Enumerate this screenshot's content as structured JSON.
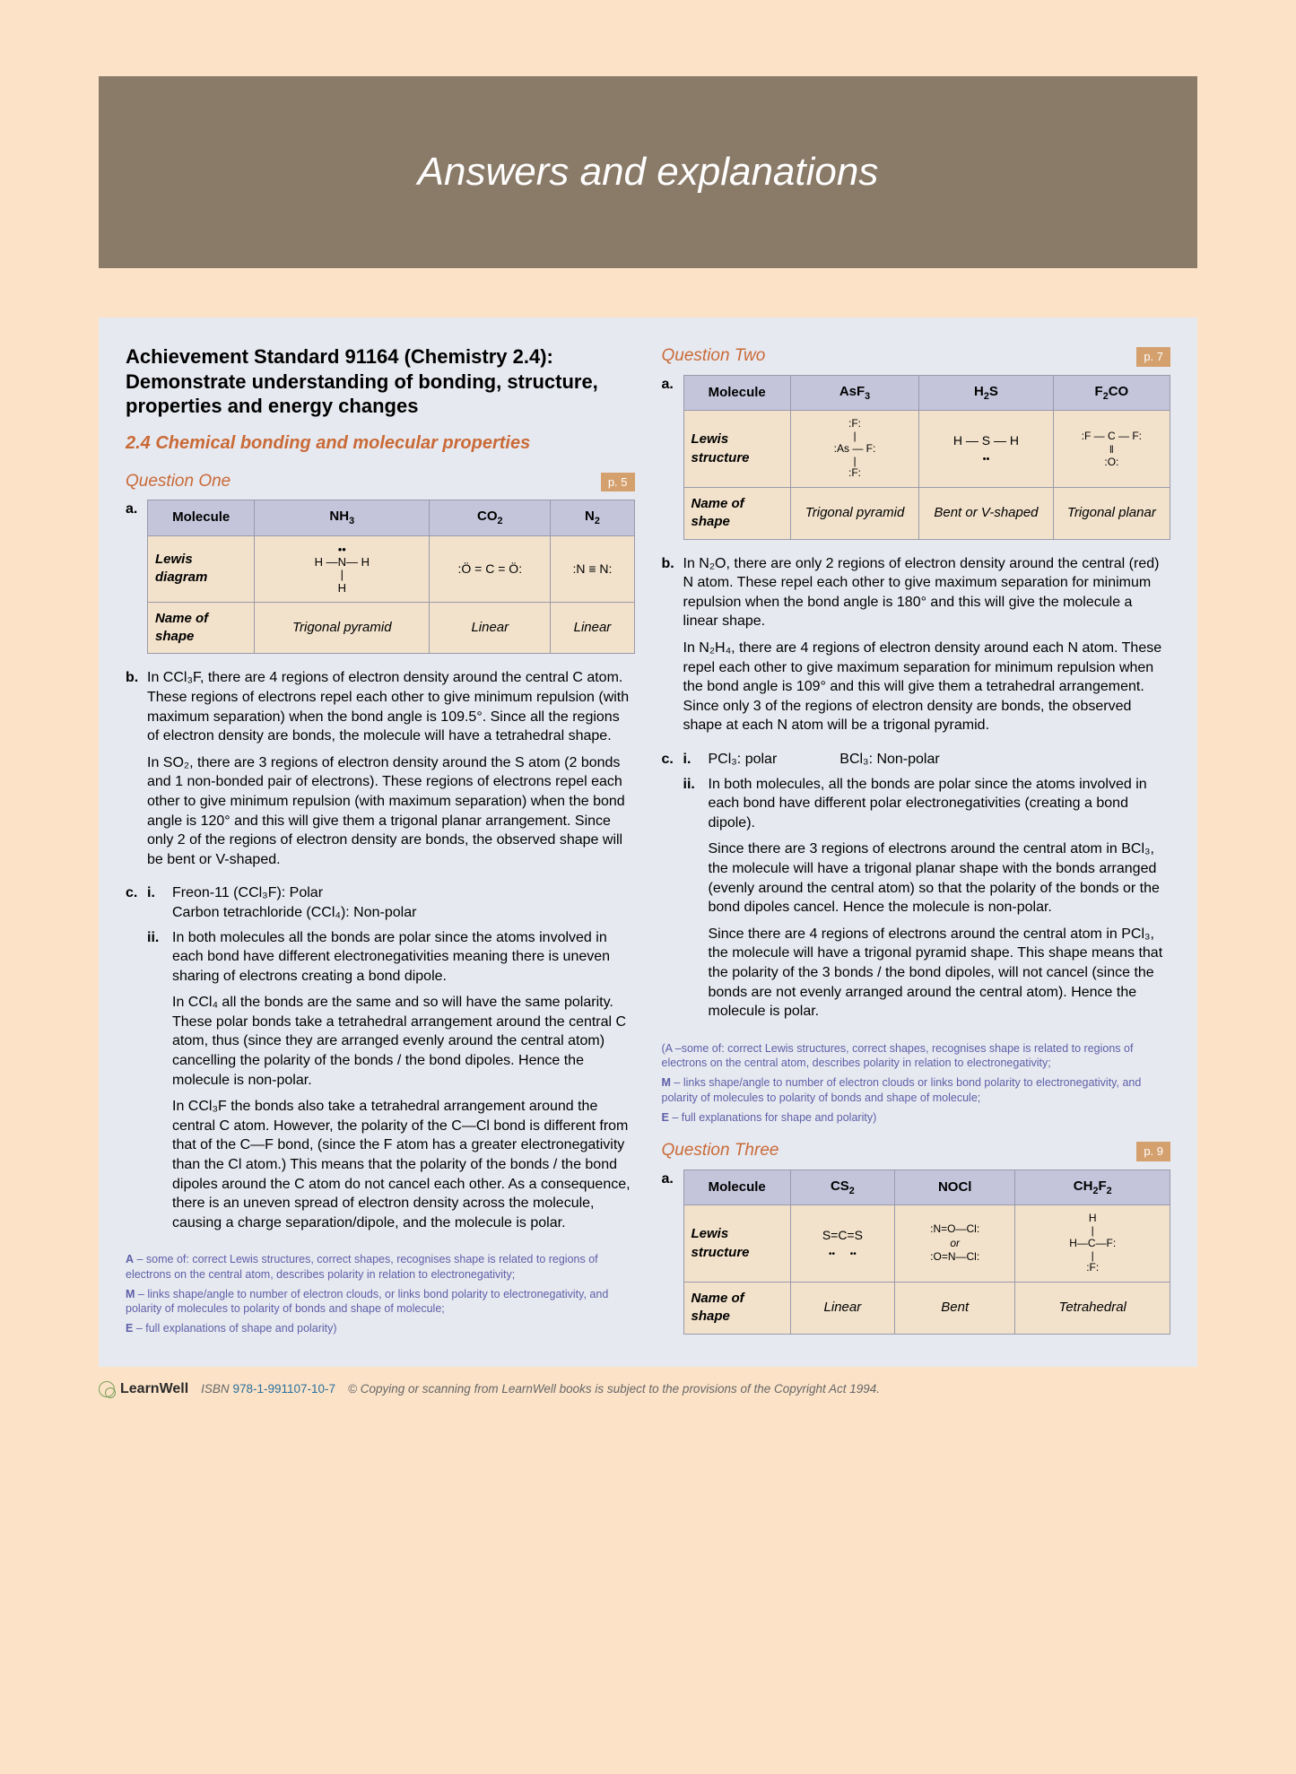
{
  "banner_title": "Answers and explanations",
  "main_heading": "Achievement Standard 91164 (Chemistry 2.4): Demonstrate understanding of bonding, structure, properties and energy changes",
  "section_heading": "2.4 Chemical bonding and molecular properties",
  "colors": {
    "page_bg": "#fce3c8",
    "banner_bg": "#8a7a68",
    "content_bg": "#e7e9f0",
    "accent": "#c96a37",
    "table_header": "#c4c5db",
    "table_cell": "#f2e2cb",
    "note_color": "#5d5fa8",
    "page_ref_bg": "#d4a06e"
  },
  "q1": {
    "title": "Question One",
    "page_ref": "p. 5",
    "table": {
      "headers": [
        "Molecule",
        "NH₃",
        "CO₂",
        "N₂"
      ],
      "rows": [
        {
          "label": "Lewis diagram",
          "cells": [
            "H—N—H (with lone pair on N, H below)",
            "O=C=O (with lone pairs)",
            "N≡N (with lone pairs)"
          ]
        },
        {
          "label": "Name of shape",
          "cells": [
            "Trigonal pyramid",
            "Linear",
            "Linear"
          ]
        }
      ]
    },
    "b1": "In CCl₃F, there are 4 regions of electron density around the central C atom. These regions of electrons repel each other to give minimum repulsion (with maximum separation) when the bond angle is 109.5°. Since all the regions of electron density are bonds, the molecule will have a tetrahedral shape.",
    "b2": "In SO₂, there are 3 regions of electron density around the S atom (2 bonds and 1 non-bonded pair of electrons). These regions of electrons repel each other to give minimum repulsion (with maximum separation) when the bond angle is 120° and this will give them a trigonal planar arrangement. Since only 2 of the regions of electron density are bonds, the observed shape will be bent or V-shaped.",
    "c_i_1": "Freon-11 (CCl₃F): Polar",
    "c_i_2": "Carbon tetrachloride (CCl₄): Non-polar",
    "c_ii_1": "In both molecules all the bonds are polar since the atoms involved in each bond have  different electronegativities meaning there is uneven sharing of electrons creating a bond dipole.",
    "c_ii_2": "In CCl₄ all the bonds are the same and so will have the same polarity. These polar bonds take a tetrahedral arrangement around the central C atom, thus (since they are arranged evenly around the central atom) cancelling the polarity of the bonds / the bond dipoles. Hence the molecule is non-polar.",
    "c_ii_3": "In CCl₃F the bonds also take a tetrahedral arrangement around the central C atom. However, the polarity of the C—Cl bond is different from that of the C—F bond, (since the F atom has a greater electronegativity than the Cl atom.) This means that the polarity of the bonds / the bond dipoles around the C atom do not cancel each other. As a consequence, there is an uneven spread of electron density across the molecule, causing a charge separation/dipole, and the molecule is polar.",
    "note_a": "A – some of: correct Lewis structures, correct shapes, recognises shape is related to regions of electrons on the central atom, describes polarity in relation to electronegativity;",
    "note_m": "M – links shape/angle to number of electron clouds, or links bond polarity to electronegativity, and polarity of molecules to polarity of bonds and shape of molecule;",
    "note_e": "E – full explanations of shape and polarity)"
  },
  "q2": {
    "title": "Question Two",
    "page_ref": "p. 7",
    "table": {
      "headers": [
        "Molecule",
        "AsF₃",
        "H₂S",
        "F₂CO"
      ],
      "rows": [
        {
          "label": "Lewis structure",
          "cells": [
            "As with 3 F and lone pair",
            "H—S—H with lone pairs",
            "F—C(=O)—F with lone pairs"
          ]
        },
        {
          "label": "Name of shape",
          "cells": [
            "Trigonal pyramid",
            "Bent or V-shaped",
            "Trigonal planar"
          ]
        }
      ]
    },
    "b1": "In N₂O, there are only 2 regions of electron density around the central (red) N atom. These repel each other to give maximum separation for minimum repulsion when the bond angle is 180° and this will give the molecule a linear shape.",
    "b2": "In N₂H₄, there are 4 regions of electron density around each N atom. These repel each other to give maximum separation for minimum repulsion when the bond angle is 109° and this will give them a tetrahedral arrangement. Since only 3 of the regions of electron density are bonds, the observed shape at each N atom will be a trigonal pyramid.",
    "c_i_1": "PCl₃: polar",
    "c_i_2": "BCl₃: Non-polar",
    "c_ii_1": "In both molecules, all the bonds are polar since the atoms involved in each bond have different polar electronegativities (creating a bond dipole).",
    "c_ii_2": "Since there are 3 regions of electrons around the central atom in BCl₃, the molecule will have a trigonal planar shape with the bonds arranged (evenly around the central atom) so that the polarity of the bonds or the bond dipoles cancel. Hence the molecule is non-polar.",
    "c_ii_3": "Since there are 4 regions of electrons around the central atom in PCl₃, the molecule will have a trigonal pyramid shape. This shape means that the polarity of the 3 bonds / the bond dipoles, will not cancel (since the bonds are not evenly arranged around the central atom). Hence the molecule is polar.",
    "note_a": "(A –some of: correct Lewis structures, correct shapes, recognises shape is related to regions of electrons on the central atom, describes polarity in relation to electronegativity;",
    "note_m": "M – links shape/angle to number of electron clouds or links bond polarity to electronegativity, and polarity of molecules to polarity of bonds and shape of molecule;",
    "note_e": "E – full explanations for shape and polarity)"
  },
  "q3": {
    "title": "Question Three",
    "page_ref": "p. 9",
    "table": {
      "headers": [
        "Molecule",
        "CS₂",
        "NOCl",
        "CH₂F₂"
      ],
      "rows": [
        {
          "label": "Lewis structure",
          "cells": [
            "S=C=S",
            "N=O—Cl or O=N—Cl",
            "H—C(H)(F)—F"
          ]
        },
        {
          "label": "Name of shape",
          "cells": [
            "Linear",
            "Bent",
            "Tetrahedral"
          ]
        }
      ]
    }
  },
  "footer": {
    "brand": "LearnWell",
    "isbn_label": "ISBN",
    "isbn": "978-1-991107-10-7",
    "copyright": "© Copying or scanning from LearnWell books is subject to the provisions of the Copyright Act 1994."
  }
}
